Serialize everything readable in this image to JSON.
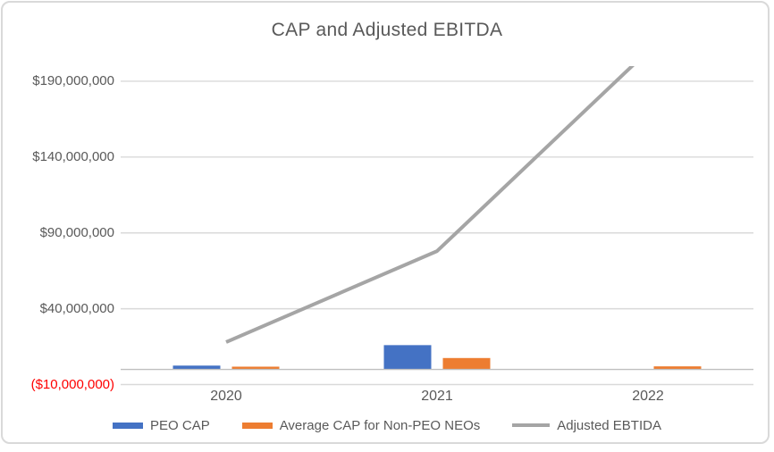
{
  "chart_data": {
    "type": "combo",
    "title": "CAP and Adjusted EBITDA",
    "categories": [
      "2020",
      "2021",
      "2022"
    ],
    "series": [
      {
        "name": "PEO CAP",
        "type": "bar",
        "color": "#4472C4",
        "values": [
          2500000,
          16000000,
          0
        ]
      },
      {
        "name": "Average CAP for Non-PEO NEOs",
        "type": "bar",
        "color": "#ED7D31",
        "values": [
          1800000,
          7500000,
          2000000
        ]
      },
      {
        "name": "Adjusted EBTIDA",
        "type": "line",
        "color": "#A5A5A5",
        "values": [
          18000000,
          78000000,
          210000000
        ]
      }
    ],
    "ylim": [
      -10000000,
      200000000
    ],
    "y_ticks": [
      {
        "value": 190000000,
        "label": "$190,000,000",
        "negative": false
      },
      {
        "value": 140000000,
        "label": "$140,000,000",
        "negative": false
      },
      {
        "value": 90000000,
        "label": "$90,000,000",
        "negative": false
      },
      {
        "value": 40000000,
        "label": "$40,000,000",
        "negative": false
      },
      {
        "value": -10000000,
        "label": "($10,000,000)",
        "negative": true
      }
    ],
    "grid": true,
    "legend_position": "bottom"
  },
  "colors": {
    "gridline": "#D9D9D9",
    "axis_line": "#BFBFBF",
    "text": "#595959",
    "negative_tick": "#FF0000",
    "chart_border": "#D9D9D9",
    "background": "#FFFFFF"
  }
}
